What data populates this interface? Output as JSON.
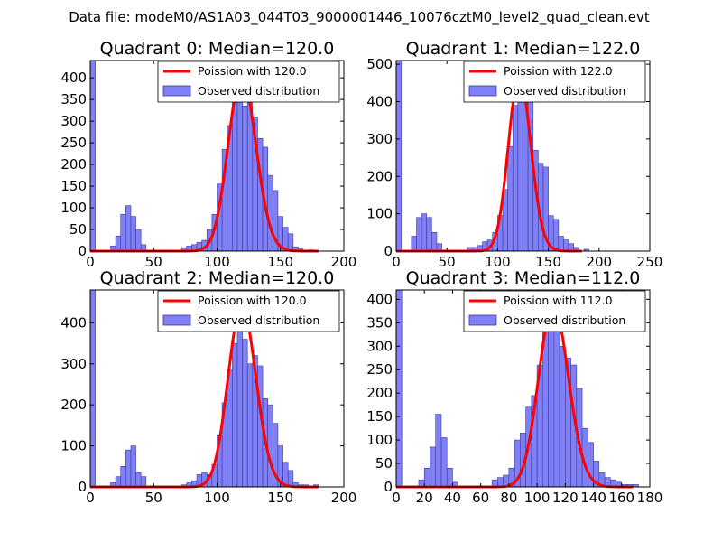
{
  "figure_title": "Data file: modeM0/AS1A03_044T03_9000001446_10076cztM0_level2_quad_clean.evt",
  "colors": {
    "bar_fill": "#7f7ff6",
    "bar_edge": "#3a3a9a",
    "poisson_line": "#ff0000"
  },
  "chart_data": [
    {
      "type": "bar",
      "title": "Quadrant 0: Median=120.0",
      "median": 120.0,
      "xlim": [
        0,
        200
      ],
      "ylim": [
        0,
        440
      ],
      "xticks": [
        0,
        50,
        100,
        150,
        200
      ],
      "yticks": [
        0,
        50,
        100,
        150,
        200,
        250,
        300,
        350,
        400
      ],
      "bin_width": 4,
      "series": [
        {
          "name": "Poission with 120.0",
          "kind": "line"
        },
        {
          "name": "Observed distribution",
          "kind": "hist",
          "bins": [
            [
              0,
              440
            ],
            [
              16,
              12
            ],
            [
              20,
              35
            ],
            [
              24,
              85
            ],
            [
              28,
              105
            ],
            [
              32,
              80
            ],
            [
              36,
              50
            ],
            [
              40,
              15
            ],
            [
              72,
              8
            ],
            [
              76,
              12
            ],
            [
              80,
              15
            ],
            [
              84,
              20
            ],
            [
              88,
              25
            ],
            [
              92,
              50
            ],
            [
              96,
              85
            ],
            [
              100,
              155
            ],
            [
              104,
              235
            ],
            [
              108,
              290
            ],
            [
              112,
              355
            ],
            [
              116,
              380
            ],
            [
              120,
              335
            ],
            [
              124,
              400
            ],
            [
              128,
              310
            ],
            [
              132,
              260
            ],
            [
              136,
              240
            ],
            [
              140,
              175
            ],
            [
              144,
              140
            ],
            [
              148,
              80
            ],
            [
              152,
              55
            ],
            [
              156,
              40
            ],
            [
              160,
              10
            ],
            [
              164,
              5
            ],
            [
              172,
              3
            ]
          ]
        }
      ]
    },
    {
      "type": "bar",
      "title": "Quadrant 1: Median=122.0",
      "median": 122.0,
      "xlim": [
        0,
        250
      ],
      "ylim": [
        0,
        510
      ],
      "xticks": [
        0,
        50,
        100,
        150,
        200,
        250
      ],
      "yticks": [
        0,
        100,
        200,
        300,
        400,
        500
      ],
      "bin_width": 5,
      "series": [
        {
          "name": "Poission with 122.0",
          "kind": "line"
        },
        {
          "name": "Observed distribution",
          "kind": "hist",
          "bins": [
            [
              0,
              510
            ],
            [
              15,
              40
            ],
            [
              20,
              90
            ],
            [
              25,
              100
            ],
            [
              30,
              90
            ],
            [
              35,
              50
            ],
            [
              40,
              20
            ],
            [
              70,
              10
            ],
            [
              75,
              10
            ],
            [
              80,
              15
            ],
            [
              85,
              25
            ],
            [
              90,
              30
            ],
            [
              95,
              50
            ],
            [
              100,
              95
            ],
            [
              105,
              165
            ],
            [
              110,
              280
            ],
            [
              115,
              390
            ],
            [
              120,
              400
            ],
            [
              125,
              460
            ],
            [
              130,
              490
            ],
            [
              135,
              270
            ],
            [
              140,
              235
            ],
            [
              145,
              225
            ],
            [
              150,
              95
            ],
            [
              155,
              85
            ],
            [
              160,
              40
            ],
            [
              165,
              30
            ],
            [
              170,
              20
            ],
            [
              175,
              10
            ],
            [
              185,
              5
            ]
          ]
        }
      ]
    },
    {
      "type": "bar",
      "title": "Quadrant 2: Median=120.0",
      "median": 120.0,
      "xlim": [
        0,
        200
      ],
      "ylim": [
        0,
        480
      ],
      "xticks": [
        0,
        50,
        100,
        150,
        200
      ],
      "yticks": [
        0,
        100,
        200,
        300,
        400
      ],
      "bin_width": 4,
      "series": [
        {
          "name": "Poission with 120.0",
          "kind": "line"
        },
        {
          "name": "Observed distribution",
          "kind": "hist",
          "bins": [
            [
              0,
              480
            ],
            [
              16,
              10
            ],
            [
              20,
              25
            ],
            [
              24,
              50
            ],
            [
              28,
              90
            ],
            [
              32,
              100
            ],
            [
              36,
              35
            ],
            [
              40,
              25
            ],
            [
              72,
              5
            ],
            [
              76,
              10
            ],
            [
              80,
              15
            ],
            [
              84,
              30
            ],
            [
              88,
              35
            ],
            [
              92,
              30
            ],
            [
              96,
              55
            ],
            [
              100,
              125
            ],
            [
              104,
              205
            ],
            [
              108,
              285
            ],
            [
              112,
              350
            ],
            [
              116,
              380
            ],
            [
              120,
              360
            ],
            [
              124,
              300
            ],
            [
              128,
              320
            ],
            [
              132,
              295
            ],
            [
              136,
              215
            ],
            [
              140,
              200
            ],
            [
              144,
              155
            ],
            [
              148,
              100
            ],
            [
              152,
              60
            ],
            [
              156,
              40
            ],
            [
              160,
              10
            ],
            [
              164,
              5
            ],
            [
              168,
              5
            ],
            [
              176,
              5
            ]
          ]
        }
      ]
    },
    {
      "type": "bar",
      "title": "Quadrant 3: Median=112.0",
      "median": 112.0,
      "xlim": [
        0,
        180
      ],
      "ylim": [
        0,
        420
      ],
      "xticks": [
        0,
        20,
        40,
        60,
        80,
        100,
        120,
        140,
        160,
        180
      ],
      "yticks": [
        0,
        50,
        100,
        150,
        200,
        250,
        300,
        350,
        400
      ],
      "bin_width": 4,
      "series": [
        {
          "name": "Poission with 112.0",
          "kind": "line"
        },
        {
          "name": "Observed distribution",
          "kind": "hist",
          "bins": [
            [
              0,
              420
            ],
            [
              16,
              15
            ],
            [
              20,
              40
            ],
            [
              24,
              85
            ],
            [
              28,
              155
            ],
            [
              32,
              105
            ],
            [
              36,
              40
            ],
            [
              40,
              10
            ],
            [
              68,
              15
            ],
            [
              72,
              20
            ],
            [
              76,
              25
            ],
            [
              80,
              40
            ],
            [
              84,
              100
            ],
            [
              88,
              115
            ],
            [
              92,
              170
            ],
            [
              96,
              195
            ],
            [
              100,
              260
            ],
            [
              104,
              335
            ],
            [
              108,
              405
            ],
            [
              112,
              345
            ],
            [
              116,
              300
            ],
            [
              120,
              275
            ],
            [
              124,
              260
            ],
            [
              128,
              210
            ],
            [
              132,
              125
            ],
            [
              136,
              95
            ],
            [
              140,
              55
            ],
            [
              144,
              30
            ],
            [
              148,
              20
            ],
            [
              152,
              15
            ],
            [
              156,
              10
            ],
            [
              160,
              5
            ],
            [
              164,
              5
            ],
            [
              168,
              5
            ]
          ]
        }
      ]
    }
  ]
}
